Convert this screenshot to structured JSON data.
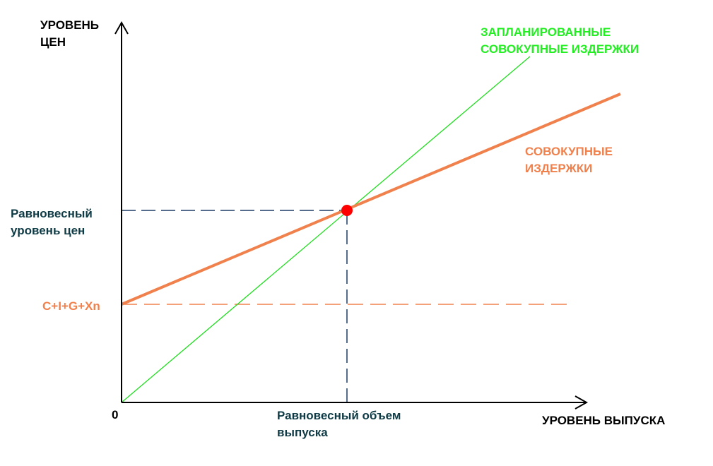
{
  "colors": {
    "axis": "#000000",
    "guide": "#1f3b66",
    "planned_line": "#22dd22",
    "aggregate_line": "#f0804c",
    "equilibrium_point": "#ff0000",
    "dark_text": "#0e3b45",
    "planned_text": "#22ee22",
    "aggregate_text": "#f0804c"
  },
  "labels": {
    "y_axis": [
      "УРОВЕНЬ",
      "ЦЕН"
    ],
    "x_axis": "УРОВЕНЬ ВЫПУСКА",
    "origin": "0",
    "planned_costs": [
      "ЗАПЛАНИРОВАННЫЕ",
      "СОВОКУПНЫЕ ИЗДЕРЖКИ"
    ],
    "aggregate_costs": [
      "СОВОКУПНЫЕ",
      "ИЗДЕРЖКИ"
    ],
    "equilibrium_price": [
      "Равновесный",
      "уровень цен"
    ],
    "intercept": "C+I+G+Xn",
    "equilibrium_output": [
      "Равновесный объем",
      "выпуска"
    ]
  }
}
